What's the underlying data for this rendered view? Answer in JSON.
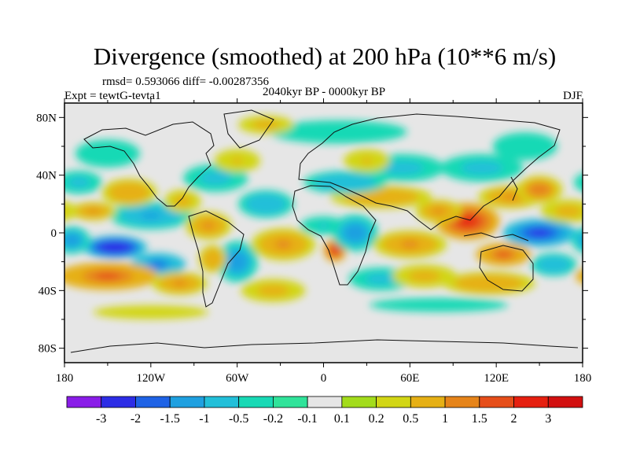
{
  "chart_data": {
    "type": "heatmap",
    "title": "Divergence (smoothed) at 200 hPa (10**6 m/s)",
    "rmsd_line": "rmsd= 0.593066 diff= -0.00287356",
    "subtitle_center": "2040kyr BP - 0000kyr BP",
    "subtitle_left": "Expt = tewtG-tevta1",
    "subtitle_right": "DJF",
    "x_ticks": [
      "180",
      "120W",
      "60W",
      "0",
      "60E",
      "120E",
      "180"
    ],
    "x_tick_values": [
      -180,
      -120,
      -60,
      0,
      60,
      120,
      180
    ],
    "y_ticks": [
      "80N",
      "40N",
      "0",
      "40S",
      "80S"
    ],
    "y_tick_values": [
      80,
      40,
      0,
      -40,
      -80
    ],
    "xlim": [
      -180,
      180
    ],
    "ylim": [
      -90,
      90
    ],
    "colorbar": {
      "labels": [
        "-3",
        "-2",
        "-1.5",
        "-1",
        "-0.5",
        "-0.2",
        "-0.1",
        "0.1",
        "0.2",
        "0.5",
        "1",
        "1.5",
        "2",
        "3"
      ],
      "colors": [
        "#8a1de8",
        "#2d2de6",
        "#1f63e6",
        "#1fa0e0",
        "#22bfd9",
        "#18d9b5",
        "#30e39a",
        "#e6e6e6",
        "#a3dc1c",
        "#d2d615",
        "#e6b015",
        "#e6841a",
        "#e64e1a",
        "#e62010",
        "#d21010"
      ]
    },
    "anomalies": [
      {
        "lon": -145,
        "lat": -10,
        "sx": 14,
        "sy": 5,
        "value": -3
      },
      {
        "lon": -115,
        "lat": -22,
        "sx": 12,
        "sy": 5,
        "value": -1.8
      },
      {
        "lon": -120,
        "lat": 12,
        "sx": 18,
        "sy": 6,
        "value": -1.2
      },
      {
        "lon": -175,
        "lat": -5,
        "sx": 8,
        "sy": 6,
        "value": -1.3
      },
      {
        "lon": -135,
        "lat": 28,
        "sx": 12,
        "sy": 6,
        "value": 0.9
      },
      {
        "lon": -160,
        "lat": 15,
        "sx": 10,
        "sy": 4,
        "value": 1.0
      },
      {
        "lon": -150,
        "lat": -30,
        "sx": 22,
        "sy": 6,
        "value": 1.6
      },
      {
        "lon": -100,
        "lat": -35,
        "sx": 12,
        "sy": 5,
        "value": 1.2
      },
      {
        "lon": -80,
        "lat": 5,
        "sx": 10,
        "sy": 6,
        "value": 1.1
      },
      {
        "lon": -98,
        "lat": 22,
        "sx": 8,
        "sy": 5,
        "value": 0.8
      },
      {
        "lon": -75,
        "lat": 38,
        "sx": 14,
        "sy": 6,
        "value": -0.8
      },
      {
        "lon": -60,
        "lat": -20,
        "sx": 9,
        "sy": 9,
        "value": -1.3
      },
      {
        "lon": -77,
        "lat": -18,
        "sx": 6,
        "sy": 6,
        "value": 0.9
      },
      {
        "lon": -40,
        "lat": 20,
        "sx": 12,
        "sy": 6,
        "value": -0.9
      },
      {
        "lon": -28,
        "lat": -8,
        "sx": 14,
        "sy": 7,
        "value": 1.2
      },
      {
        "lon": -35,
        "lat": -40,
        "sx": 14,
        "sy": 5,
        "value": 0.8
      },
      {
        "lon": 0,
        "lat": 5,
        "sx": 10,
        "sy": 4,
        "value": -0.6
      },
      {
        "lon": 8,
        "lat": -12,
        "sx": 5,
        "sy": 5,
        "value": 2.2
      },
      {
        "lon": 22,
        "lat": 0,
        "sx": 10,
        "sy": 8,
        "value": -1.4
      },
      {
        "lon": 40,
        "lat": 25,
        "sx": 22,
        "sy": 5,
        "value": 0.9
      },
      {
        "lon": 15,
        "lat": 35,
        "sx": 18,
        "sy": 5,
        "value": -0.9
      },
      {
        "lon": 10,
        "lat": 70,
        "sx": 30,
        "sy": 5,
        "value": -0.5
      },
      {
        "lon": 60,
        "lat": -8,
        "sx": 16,
        "sy": 6,
        "value": 1.2
      },
      {
        "lon": 40,
        "lat": -32,
        "sx": 14,
        "sy": 5,
        "value": -0.8
      },
      {
        "lon": 70,
        "lat": -30,
        "sx": 14,
        "sy": 5,
        "value": 0.7
      },
      {
        "lon": 55,
        "lat": 45,
        "sx": 18,
        "sy": 6,
        "value": -0.8
      },
      {
        "lon": 100,
        "lat": 8,
        "sx": 14,
        "sy": 8,
        "value": 2.2
      },
      {
        "lon": 80,
        "lat": 15,
        "sx": 10,
        "sy": 5,
        "value": 1.2
      },
      {
        "lon": 130,
        "lat": 25,
        "sx": 14,
        "sy": 5,
        "value": 1.1
      },
      {
        "lon": 150,
        "lat": 30,
        "sx": 10,
        "sy": 6,
        "value": 1.3
      },
      {
        "lon": 110,
        "lat": 45,
        "sx": 18,
        "sy": 6,
        "value": -0.8
      },
      {
        "lon": 150,
        "lat": 0,
        "sx": 16,
        "sy": 6,
        "value": -2.4
      },
      {
        "lon": 125,
        "lat": -15,
        "sx": 12,
        "sy": 5,
        "value": 1.8
      },
      {
        "lon": 160,
        "lat": -22,
        "sx": 10,
        "sy": 5,
        "value": -1.0
      },
      {
        "lon": 170,
        "lat": 15,
        "sx": 12,
        "sy": 5,
        "value": 0.8
      },
      {
        "lon": 115,
        "lat": -35,
        "sx": 20,
        "sy": 5,
        "value": 0.9
      },
      {
        "lon": 140,
        "lat": 60,
        "sx": 14,
        "sy": 6,
        "value": -0.5
      },
      {
        "lon": -150,
        "lat": 55,
        "sx": 14,
        "sy": 6,
        "value": -0.4
      },
      {
        "lon": -40,
        "lat": 75,
        "sx": 12,
        "sy": 4,
        "value": 0.7
      },
      {
        "lon": 80,
        "lat": -50,
        "sx": 30,
        "sy": 3,
        "value": -0.4
      },
      {
        "lon": -120,
        "lat": -55,
        "sx": 25,
        "sy": 3,
        "value": 0.4
      },
      {
        "lon": -60,
        "lat": 50,
        "sx": 10,
        "sy": 5,
        "value": 0.6
      },
      {
        "lon": 30,
        "lat": 50,
        "sx": 10,
        "sy": 5,
        "value": 0.5
      },
      {
        "lon": -170,
        "lat": 35,
        "sx": 10,
        "sy": 5,
        "value": -0.7
      }
    ]
  }
}
